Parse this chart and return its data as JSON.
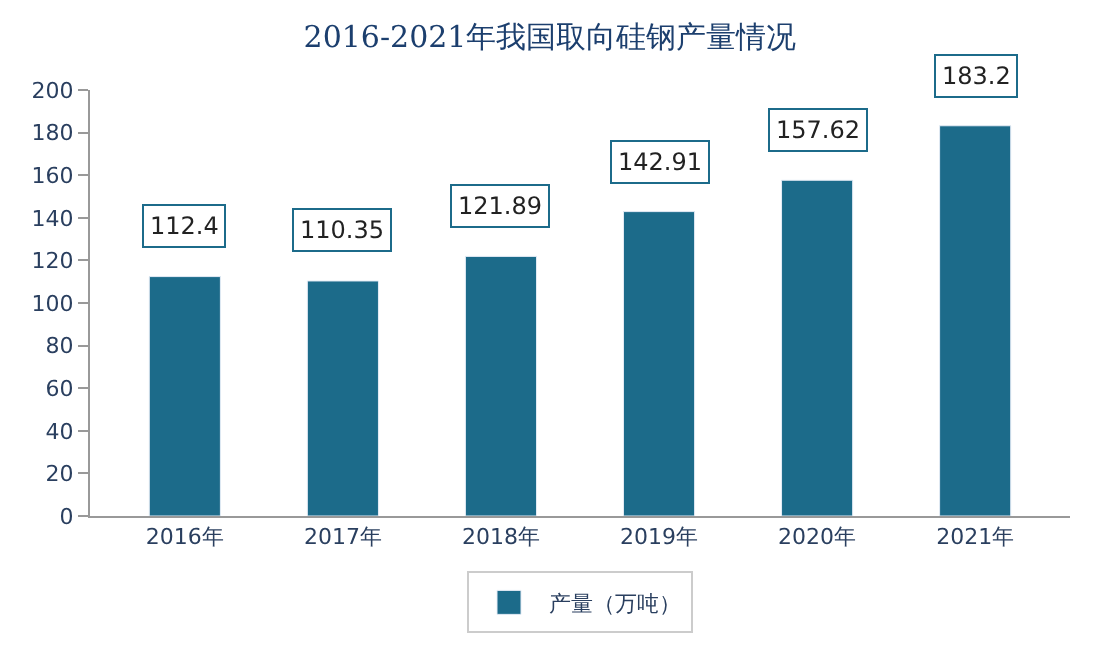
{
  "chart_data": {
    "type": "bar",
    "title": "2016-2021年我国取向硅钢产量情况",
    "categories": [
      "2016年",
      "2017年",
      "2018年",
      "2019年",
      "2020年",
      "2021年"
    ],
    "series": [
      {
        "name": "产量（万吨）",
        "color": "#1c6b8a",
        "values": [
          112.4,
          110.35,
          121.89,
          142.91,
          157.62,
          183.2
        ]
      }
    ],
    "ylim": [
      0,
      200
    ],
    "yticks": [
      0,
      20,
      40,
      60,
      80,
      100,
      120,
      140,
      160,
      180,
      200
    ],
    "data_labels": true,
    "legend": "bottom",
    "grid": false
  }
}
